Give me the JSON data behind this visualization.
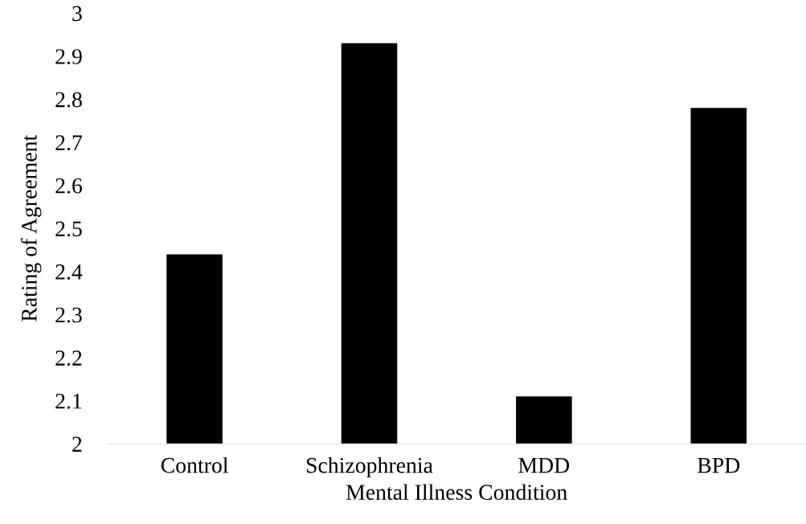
{
  "chart_data": {
    "type": "bar",
    "xlabel": "Mental Illness Condition",
    "ylabel": "Rating of Agreement",
    "categories": [
      "Control",
      "Schizophrenia",
      "MDD",
      "BPD"
    ],
    "values": [
      2.44,
      2.93,
      2.11,
      2.78
    ],
    "color": "#000000",
    "ylim": [
      2,
      3
    ],
    "yticks": [
      2,
      {
        "value": 2.1,
        "label": "2.1"
      },
      {
        "value": 2.2,
        "label": "2.2"
      },
      {
        "value": 2.3,
        "label": "2.3"
      },
      {
        "value": 2.4,
        "label": "2.4"
      },
      {
        "value": 2.5,
        "label": "2.5"
      },
      {
        "value": 2.6,
        "label": "2.6"
      },
      {
        "value": 2.7,
        "label": "2.7"
      },
      {
        "value": 2.8,
        "label": "2.8"
      },
      {
        "value": 2.9,
        "label": "2.9"
      },
      3
    ],
    "grid": false,
    "legend": false
  }
}
